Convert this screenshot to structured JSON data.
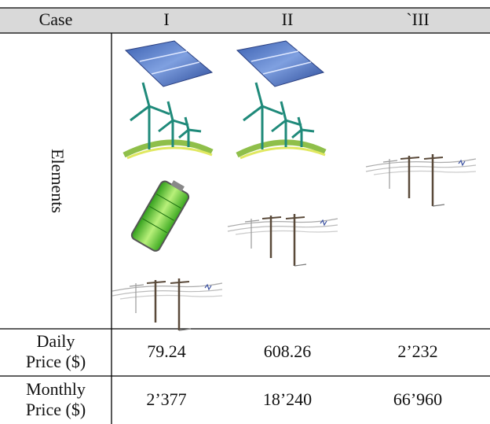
{
  "table": {
    "header": [
      "Case",
      "I",
      "II",
      "`III"
    ],
    "elements_label": "Elements",
    "rows": [
      {
        "label": [
          "Daily",
          "Price ($)"
        ],
        "values": [
          "79.24",
          "608.26",
          "2’232"
        ]
      },
      {
        "label": [
          "Monthly",
          "Price ($)"
        ],
        "values": [
          "2’377",
          "18’240",
          "66’960"
        ]
      }
    ]
  }
}
